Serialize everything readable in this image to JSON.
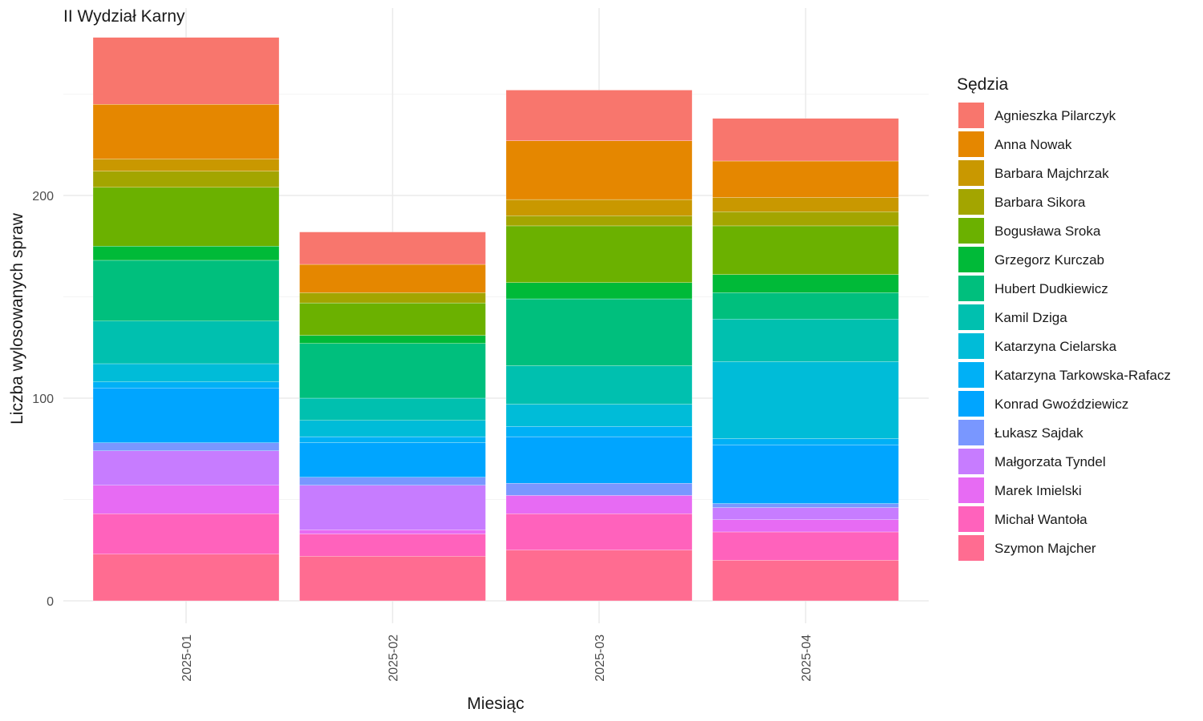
{
  "chart_data": {
    "type": "bar",
    "stacked": true,
    "title": "II Wydział Karny",
    "xlabel": "Miesiąc",
    "ylabel": "Liczba wylosowanych spraw",
    "ylim": [
      0,
      290
    ],
    "yticks": [
      0,
      100,
      200
    ],
    "grid": true,
    "legend_title": "Sędzia",
    "legend_position": "right",
    "categories": [
      "2025-01",
      "2025-02",
      "2025-03",
      "2025-04"
    ],
    "series": [
      {
        "name": "Agnieszka Pilarczyk",
        "color": "#F8766D",
        "values": [
          33,
          16,
          25,
          21
        ]
      },
      {
        "name": "Anna Nowak",
        "color": "#E58700",
        "values": [
          27,
          14,
          29,
          18
        ]
      },
      {
        "name": "Barbara Majchrzak",
        "color": "#C99800",
        "values": [
          6,
          0,
          8,
          7
        ]
      },
      {
        "name": "Barbara Sikora",
        "color": "#A3A500",
        "values": [
          8,
          5,
          5,
          7
        ]
      },
      {
        "name": "Bogusława Sroka",
        "color": "#6BB100",
        "values": [
          29,
          16,
          28,
          24
        ]
      },
      {
        "name": "Grzegorz Kurczab",
        "color": "#00BA38",
        "values": [
          7,
          4,
          8,
          9
        ]
      },
      {
        "name": "Hubert Dudkiewicz",
        "color": "#00BF7D",
        "values": [
          30,
          27,
          33,
          13
        ]
      },
      {
        "name": "Kamil Dziga",
        "color": "#00C0AF",
        "values": [
          21,
          11,
          19,
          21
        ]
      },
      {
        "name": "Katarzyna Cielarska",
        "color": "#00BCD8",
        "values": [
          9,
          8,
          11,
          38
        ]
      },
      {
        "name": "Katarzyna Tarkowska-Rafacz",
        "color": "#00B0F6",
        "values": [
          3,
          3,
          5,
          3
        ]
      },
      {
        "name": "Konrad Gwoździewicz",
        "color": "#00A5FF",
        "values": [
          27,
          17,
          23,
          29
        ]
      },
      {
        "name": "Łukasz Sajdak",
        "color": "#7997FF",
        "values": [
          4,
          4,
          6,
          2
        ]
      },
      {
        "name": "Małgorzata Tyndel",
        "color": "#C77CFF",
        "values": [
          17,
          22,
          0,
          6
        ]
      },
      {
        "name": "Marek Imielski",
        "color": "#E76BF3",
        "values": [
          14,
          2,
          9,
          6
        ]
      },
      {
        "name": "Michał Wantoła",
        "color": "#FF62BC",
        "values": [
          20,
          11,
          18,
          14
        ]
      },
      {
        "name": "Szymon Majcher",
        "color": "#FF6C91",
        "values": [
          23,
          22,
          25,
          20
        ]
      }
    ]
  }
}
